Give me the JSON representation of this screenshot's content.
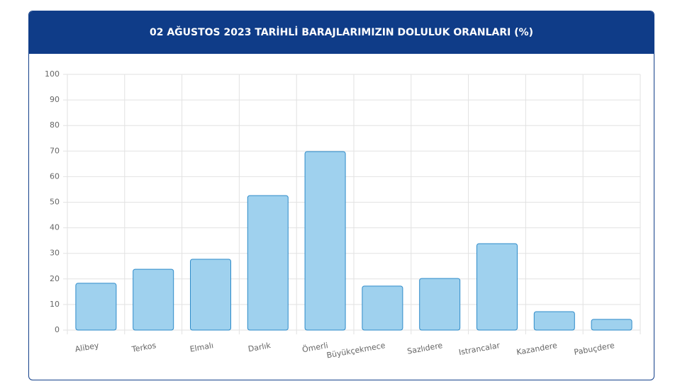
{
  "chart_data": {
    "type": "bar",
    "title": "02 AĞUSTOS 2023 TARİHLİ BARAJLARIMIZIN DOLULUK ORANLARI (%)",
    "categories": [
      "Alibey",
      "Terkos",
      "Elmalı",
      "Darlık",
      "Ömerli",
      "Büyükçekmece",
      "Sazlıdere",
      "Istrancalar",
      "Kazandere",
      "Pabuçdere"
    ],
    "values": [
      18.3,
      23.8,
      27.7,
      52.6,
      69.8,
      17.2,
      20.2,
      33.8,
      7.2,
      4.2
    ],
    "color": "#9fd1ee",
    "border_color": "#2e8bc9",
    "ylim": [
      0,
      100
    ],
    "yticks": [
      0,
      10,
      20,
      30,
      40,
      50,
      60,
      70,
      80,
      90,
      100
    ],
    "grid": true
  }
}
